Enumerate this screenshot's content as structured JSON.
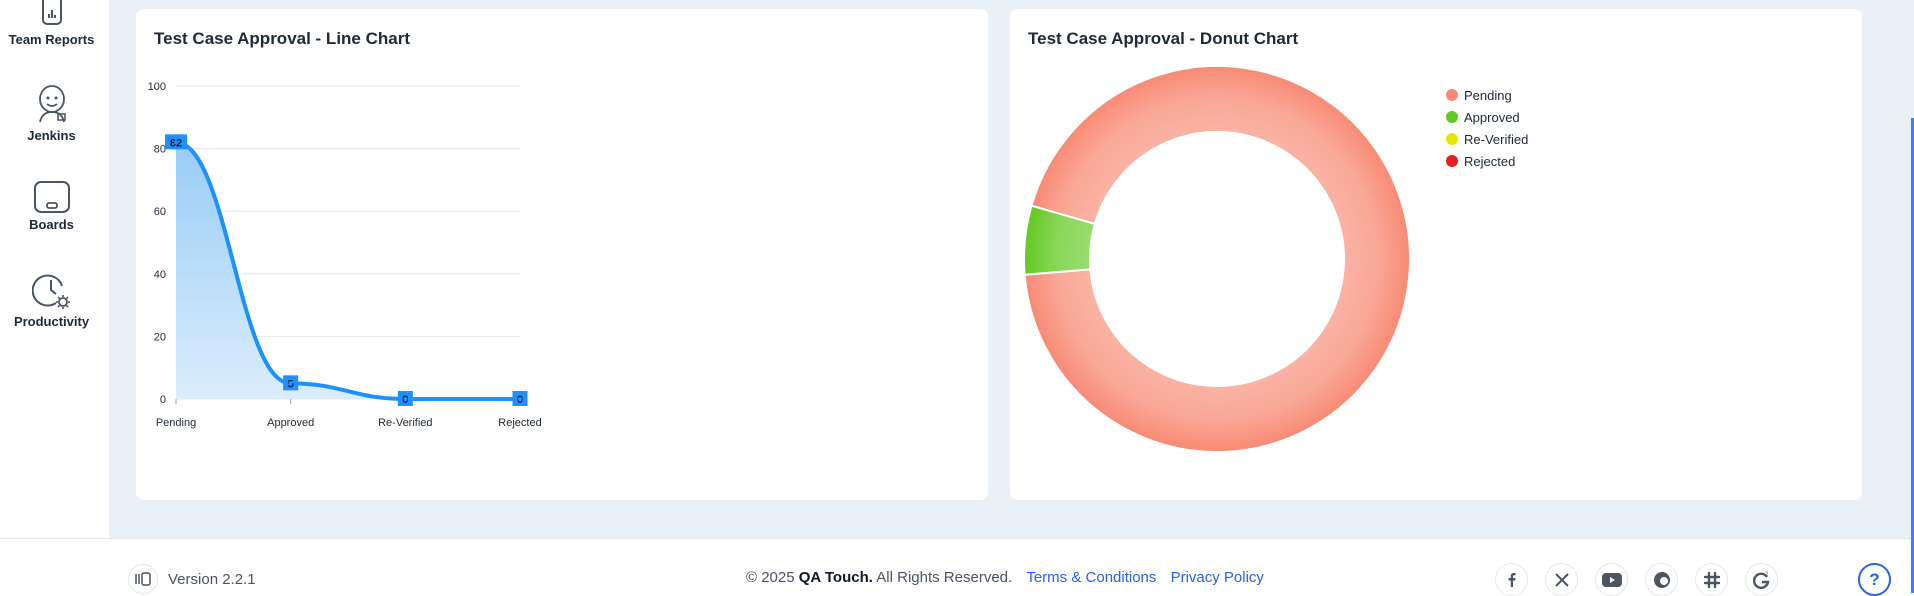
{
  "sidebar": {
    "items": [
      {
        "label": "Team Reports",
        "icon": "report-icon"
      },
      {
        "label": "Jenkins",
        "icon": "jenkins-icon"
      },
      {
        "label": "Boards",
        "icon": "board-icon"
      },
      {
        "label": "Productivity",
        "icon": "productivity-icon"
      }
    ]
  },
  "line_card": {
    "title": "Test Case Approval - Line Chart"
  },
  "donut_card": {
    "title": "Test Case Approval - Donut Chart"
  },
  "chart_data": [
    {
      "type": "line",
      "title": "Test Case Approval - Line Chart",
      "categories": [
        "Pending",
        "Approved",
        "Re-Verified",
        "Rejected"
      ],
      "values": [
        82,
        5,
        0,
        0
      ],
      "ylim": [
        0,
        100
      ],
      "yticks": [
        0,
        20,
        40,
        60,
        80,
        100
      ],
      "grid": true,
      "color": "#1e90ff",
      "area": true
    },
    {
      "type": "pie",
      "title": "Test Case Approval - Donut Chart",
      "categories": [
        "Pending",
        "Approved",
        "Re-Verified",
        "Rejected"
      ],
      "values": [
        82,
        5,
        0,
        0
      ],
      "colors": [
        "#f88a74",
        "#63c922",
        "#e6e600",
        "#e52020"
      ],
      "legend": "right"
    }
  ],
  "footer": {
    "version": "Version 2.2.1",
    "copyright_prefix": "© 2025",
    "brand": "QA Touch.",
    "rights": "All Rights Reserved.",
    "terms": "Terms & Conditions",
    "privacy": "Privacy Policy",
    "socials": [
      "facebook-icon",
      "x-icon",
      "youtube-icon",
      "community-icon",
      "slack-icon",
      "g2-icon"
    ],
    "help": "?"
  }
}
